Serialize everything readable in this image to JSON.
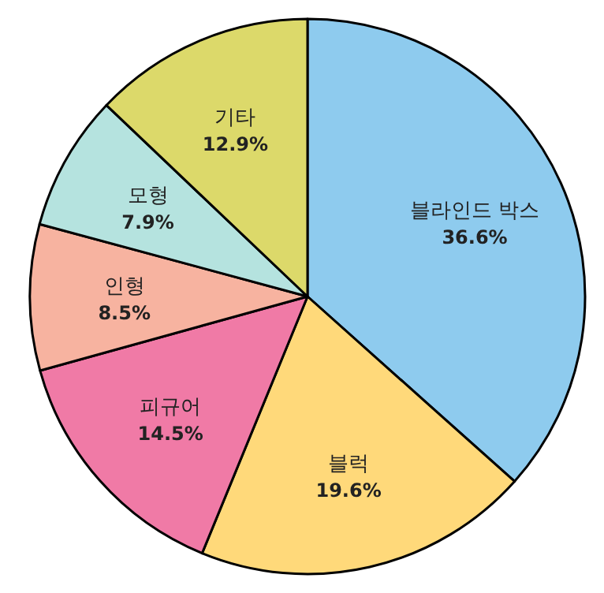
{
  "chart_data": {
    "type": "pie",
    "categories": [
      "블라인드 박스",
      "블럭",
      "피규어",
      "인형",
      "모형",
      "기타"
    ],
    "values": [
      36.6,
      19.6,
      14.5,
      8.5,
      7.9,
      12.9
    ],
    "colors": [
      "#8ecbee",
      "#ffd97a",
      "#f07aa6",
      "#f7b3a0",
      "#b5e3df",
      "#dcd96a"
    ],
    "value_labels": [
      "36.6%",
      "19.6%",
      "14.5%",
      "8.5%",
      "7.9%",
      "12.9%"
    ]
  }
}
